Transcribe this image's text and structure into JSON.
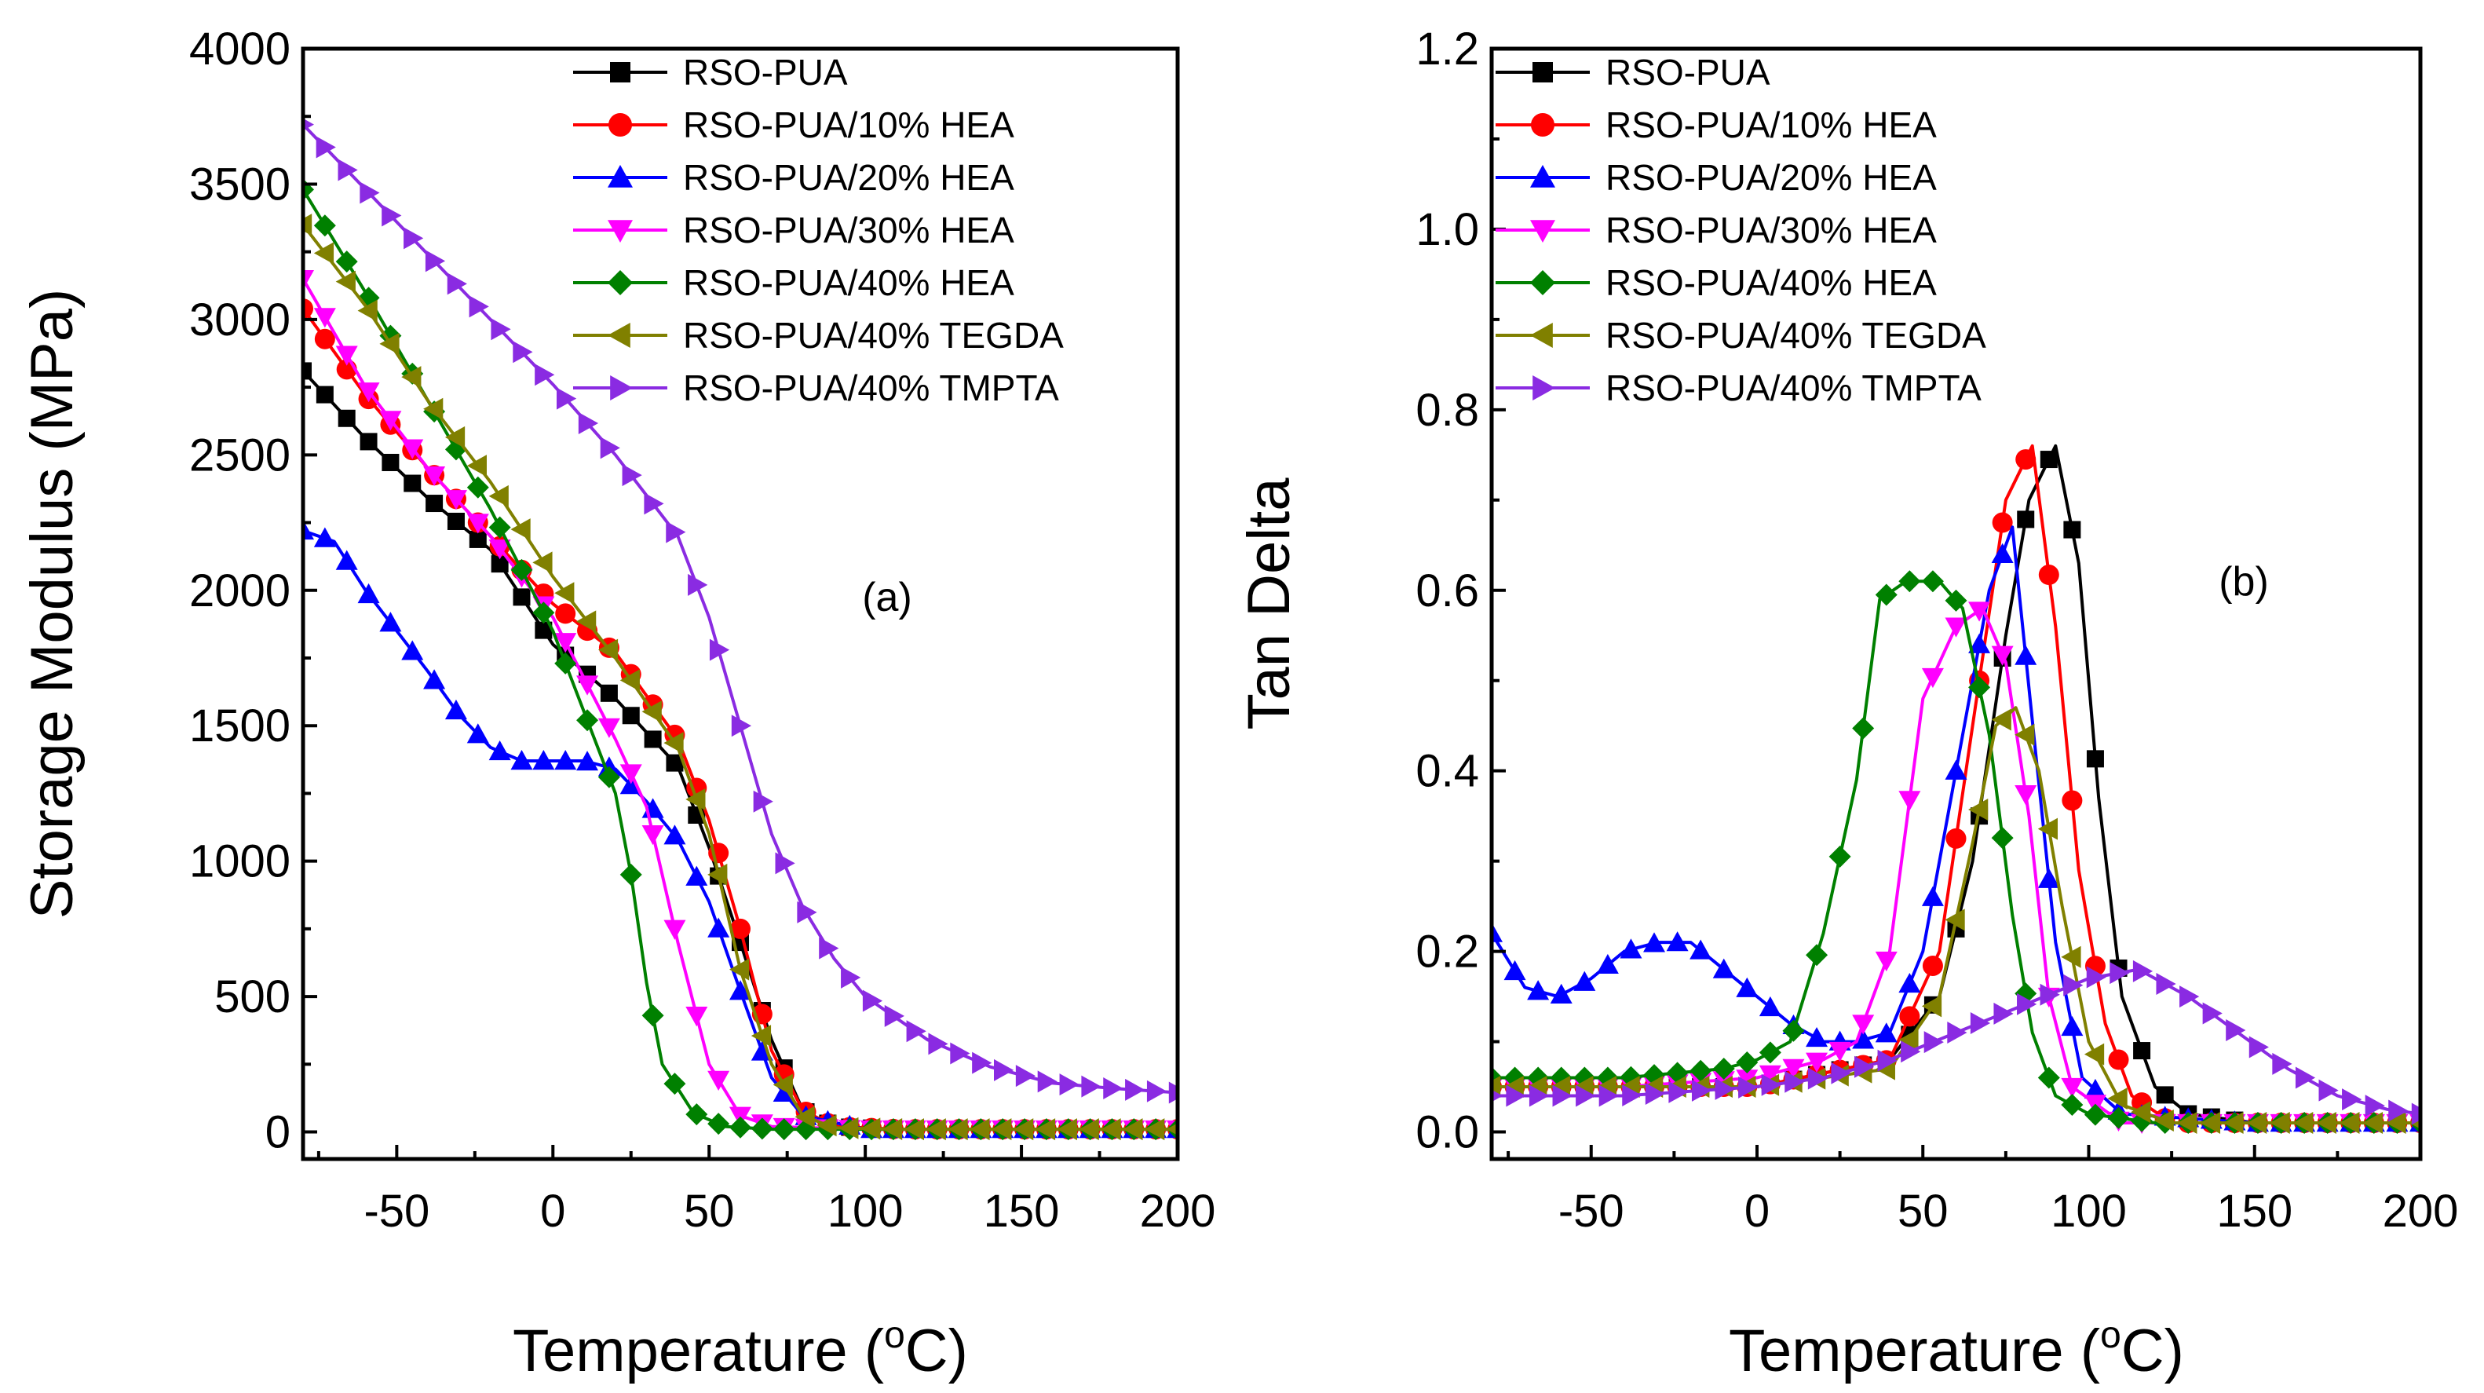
{
  "figure": {
    "xlabel_prefix": "Temperature (",
    "xlabel_sup": "o",
    "xlabel_suffix": "C)"
  },
  "chart_data": [
    {
      "type": "line",
      "panel_label": "(a)",
      "ylabel": "Storage Modulus (MPa)",
      "xlim": [
        -80,
        200
      ],
      "ylim": [
        -100,
        4000
      ],
      "xticks": [
        -50,
        0,
        50,
        100,
        150,
        200
      ],
      "yticks": [
        0,
        500,
        1000,
        1500,
        2000,
        2500,
        3000,
        3500,
        4000
      ],
      "legend_position": "top-right",
      "series": [
        {
          "name": "RSO-PUA",
          "color": "#000000",
          "marker": "square",
          "points": [
            [
              -80,
              2810
            ],
            [
              -60,
              2560
            ],
            [
              -40,
              2340
            ],
            [
              -20,
              2150
            ],
            [
              0,
              1800
            ],
            [
              20,
              1600
            ],
            [
              40,
              1350
            ],
            [
              50,
              1050
            ],
            [
              60,
              700
            ],
            [
              70,
              340
            ],
            [
              80,
              80
            ],
            [
              90,
              20
            ],
            [
              110,
              10
            ],
            [
              150,
              10
            ],
            [
              200,
              10
            ]
          ]
        },
        {
          "name": "RSO-PUA/10% HEA",
          "color": "#ff0000",
          "marker": "circle",
          "points": [
            [
              -80,
              3040
            ],
            [
              -60,
              2720
            ],
            [
              -40,
              2450
            ],
            [
              -20,
              2200
            ],
            [
              0,
              1950
            ],
            [
              20,
              1770
            ],
            [
              40,
              1450
            ],
            [
              50,
              1150
            ],
            [
              60,
              750
            ],
            [
              70,
              300
            ],
            [
              80,
              80
            ],
            [
              90,
              20
            ],
            [
              110,
              10
            ],
            [
              150,
              10
            ],
            [
              200,
              10
            ]
          ]
        },
        {
          "name": "RSO-PUA/20% HEA",
          "color": "#0000ff",
          "marker": "triangle-up",
          "points": [
            [
              -80,
              2220
            ],
            [
              -70,
              2180
            ],
            [
              -60,
              2000
            ],
            [
              -50,
              1850
            ],
            [
              -40,
              1700
            ],
            [
              -30,
              1540
            ],
            [
              -20,
              1420
            ],
            [
              -10,
              1370
            ],
            [
              0,
              1370
            ],
            [
              10,
              1370
            ],
            [
              20,
              1340
            ],
            [
              30,
              1220
            ],
            [
              40,
              1080
            ],
            [
              50,
              850
            ],
            [
              60,
              520
            ],
            [
              70,
              200
            ],
            [
              80,
              60
            ],
            [
              100,
              10
            ],
            [
              150,
              10
            ],
            [
              200,
              10
            ]
          ]
        },
        {
          "name": "RSO-PUA/30% HEA",
          "color": "#ff00ff",
          "marker": "triangle-down",
          "points": [
            [
              -80,
              3150
            ],
            [
              -60,
              2750
            ],
            [
              -40,
              2450
            ],
            [
              -20,
              2200
            ],
            [
              0,
              1900
            ],
            [
              20,
              1450
            ],
            [
              30,
              1200
            ],
            [
              40,
              700
            ],
            [
              50,
              250
            ],
            [
              60,
              60
            ],
            [
              70,
              20
            ],
            [
              100,
              10
            ],
            [
              150,
              10
            ],
            [
              200,
              10
            ]
          ]
        },
        {
          "name": "RSO-PUA/40% HEA",
          "color": "#008000",
          "marker": "diamond",
          "points": [
            [
              -80,
              3480
            ],
            [
              -60,
              3100
            ],
            [
              -40,
              2700
            ],
            [
              -20,
              2300
            ],
            [
              0,
              1850
            ],
            [
              10,
              1550
            ],
            [
              20,
              1250
            ],
            [
              25,
              950
            ],
            [
              30,
              550
            ],
            [
              35,
              250
            ],
            [
              45,
              70
            ],
            [
              55,
              20
            ],
            [
              70,
              10
            ],
            [
              100,
              10
            ],
            [
              150,
              10
            ],
            [
              200,
              10
            ]
          ]
        },
        {
          "name": "RSO-PUA/40% TEGDA",
          "color": "#808000",
          "marker": "triangle-left",
          "points": [
            [
              -80,
              3350
            ],
            [
              -60,
              3050
            ],
            [
              -40,
              2700
            ],
            [
              -20,
              2400
            ],
            [
              0,
              2050
            ],
            [
              20,
              1750
            ],
            [
              40,
              1420
            ],
            [
              50,
              1100
            ],
            [
              60,
              600
            ],
            [
              70,
              250
            ],
            [
              80,
              60
            ],
            [
              90,
              15
            ],
            [
              110,
              10
            ],
            [
              150,
              10
            ],
            [
              200,
              10
            ]
          ]
        },
        {
          "name": "RSO-PUA/40% TMPTA",
          "color": "#8a2be2",
          "marker": "triangle-right",
          "points": [
            [
              -80,
              3720
            ],
            [
              -60,
              3480
            ],
            [
              -40,
              3240
            ],
            [
              -20,
              3000
            ],
            [
              0,
              2760
            ],
            [
              20,
              2500
            ],
            [
              40,
              2200
            ],
            [
              50,
              1900
            ],
            [
              60,
              1500
            ],
            [
              70,
              1100
            ],
            [
              80,
              830
            ],
            [
              90,
              640
            ],
            [
              100,
              500
            ],
            [
              120,
              340
            ],
            [
              140,
              240
            ],
            [
              160,
              180
            ],
            [
              180,
              160
            ],
            [
              200,
              145
            ]
          ]
        }
      ]
    },
    {
      "type": "line",
      "panel_label": "(b)",
      "ylabel": "Tan Delta",
      "xlim": [
        -80,
        200
      ],
      "ylim": [
        -0.03,
        1.2
      ],
      "xticks": [
        -50,
        0,
        50,
        100,
        150,
        200
      ],
      "yticks": [
        "0.0",
        "0.2",
        "0.4",
        "0.6",
        "0.8",
        "1.0",
        "1.2"
      ],
      "legend_position": "top-left",
      "series": [
        {
          "name": "RSO-PUA",
          "color": "#000000",
          "marker": "square",
          "points": [
            [
              -80,
              0.05
            ],
            [
              0,
              0.05
            ],
            [
              40,
              0.08
            ],
            [
              55,
              0.15
            ],
            [
              65,
              0.3
            ],
            [
              75,
              0.55
            ],
            [
              82,
              0.7
            ],
            [
              90,
              0.76
            ],
            [
              97,
              0.63
            ],
            [
              103,
              0.37
            ],
            [
              110,
              0.15
            ],
            [
              120,
              0.05
            ],
            [
              130,
              0.02
            ],
            [
              150,
              0.01
            ],
            [
              200,
              0.01
            ]
          ]
        },
        {
          "name": "RSO-PUA/10% HEA",
          "color": "#ff0000",
          "marker": "circle",
          "points": [
            [
              -80,
              0.05
            ],
            [
              0,
              0.05
            ],
            [
              40,
              0.08
            ],
            [
              55,
              0.2
            ],
            [
              65,
              0.45
            ],
            [
              75,
              0.7
            ],
            [
              83,
              0.76
            ],
            [
              90,
              0.56
            ],
            [
              97,
              0.29
            ],
            [
              105,
              0.12
            ],
            [
              113,
              0.04
            ],
            [
              125,
              0.01
            ],
            [
              150,
              0.01
            ],
            [
              200,
              0.01
            ]
          ]
        },
        {
          "name": "RSO-PUA/20% HEA",
          "color": "#0000ff",
          "marker": "triangle-up",
          "points": [
            [
              -80,
              0.22
            ],
            [
              -70,
              0.16
            ],
            [
              -60,
              0.15
            ],
            [
              -50,
              0.17
            ],
            [
              -40,
              0.2
            ],
            [
              -30,
              0.21
            ],
            [
              -20,
              0.21
            ],
            [
              -10,
              0.18
            ],
            [
              0,
              0.15
            ],
            [
              10,
              0.12
            ],
            [
              20,
              0.1
            ],
            [
              30,
              0.1
            ],
            [
              40,
              0.11
            ],
            [
              50,
              0.2
            ],
            [
              60,
              0.4
            ],
            [
              70,
              0.6
            ],
            [
              77,
              0.67
            ],
            [
              84,
              0.42
            ],
            [
              90,
              0.21
            ],
            [
              98,
              0.06
            ],
            [
              110,
              0.02
            ],
            [
              150,
              0.01
            ],
            [
              200,
              0.01
            ]
          ]
        },
        {
          "name": "RSO-PUA/30% HEA",
          "color": "#ff00ff",
          "marker": "triangle-down",
          "points": [
            [
              -80,
              0.05
            ],
            [
              -40,
              0.05
            ],
            [
              0,
              0.06
            ],
            [
              20,
              0.08
            ],
            [
              30,
              0.1
            ],
            [
              40,
              0.2
            ],
            [
              50,
              0.48
            ],
            [
              60,
              0.56
            ],
            [
              68,
              0.58
            ],
            [
              75,
              0.52
            ],
            [
              82,
              0.35
            ],
            [
              88,
              0.15
            ],
            [
              95,
              0.05
            ],
            [
              110,
              0.01
            ],
            [
              150,
              0.01
            ],
            [
              200,
              0.01
            ]
          ]
        },
        {
          "name": "RSO-PUA/40% HEA",
          "color": "#008000",
          "marker": "diamond",
          "points": [
            [
              -80,
              0.06
            ],
            [
              -40,
              0.06
            ],
            [
              -10,
              0.07
            ],
            [
              0,
              0.08
            ],
            [
              10,
              0.1
            ],
            [
              20,
              0.22
            ],
            [
              30,
              0.39
            ],
            [
              37,
              0.59
            ],
            [
              45,
              0.61
            ],
            [
              55,
              0.61
            ],
            [
              62,
              0.58
            ],
            [
              70,
              0.44
            ],
            [
              77,
              0.24
            ],
            [
              83,
              0.11
            ],
            [
              90,
              0.04
            ],
            [
              100,
              0.02
            ],
            [
              120,
              0.01
            ],
            [
              150,
              0.01
            ],
            [
              200,
              0.01
            ]
          ]
        },
        {
          "name": "RSO-PUA/40% TEGDA",
          "color": "#808000",
          "marker": "triangle-left",
          "points": [
            [
              -80,
              0.05
            ],
            [
              0,
              0.05
            ],
            [
              40,
              0.07
            ],
            [
              55,
              0.15
            ],
            [
              65,
              0.32
            ],
            [
              72,
              0.45
            ],
            [
              78,
              0.47
            ],
            [
              85,
              0.4
            ],
            [
              92,
              0.25
            ],
            [
              100,
              0.1
            ],
            [
              110,
              0.03
            ],
            [
              125,
              0.01
            ],
            [
              150,
              0.01
            ],
            [
              200,
              0.01
            ]
          ]
        },
        {
          "name": "RSO-PUA/40% TMPTA",
          "color": "#8a2be2",
          "marker": "triangle-right",
          "points": [
            [
              -80,
              0.04
            ],
            [
              -40,
              0.04
            ],
            [
              0,
              0.05
            ],
            [
              20,
              0.06
            ],
            [
              40,
              0.08
            ],
            [
              60,
              0.11
            ],
            [
              80,
              0.14
            ],
            [
              100,
              0.17
            ],
            [
              115,
              0.18
            ],
            [
              130,
              0.15
            ],
            [
              145,
              0.11
            ],
            [
              160,
              0.07
            ],
            [
              175,
              0.04
            ],
            [
              190,
              0.025
            ],
            [
              200,
              0.02
            ]
          ]
        }
      ]
    }
  ]
}
